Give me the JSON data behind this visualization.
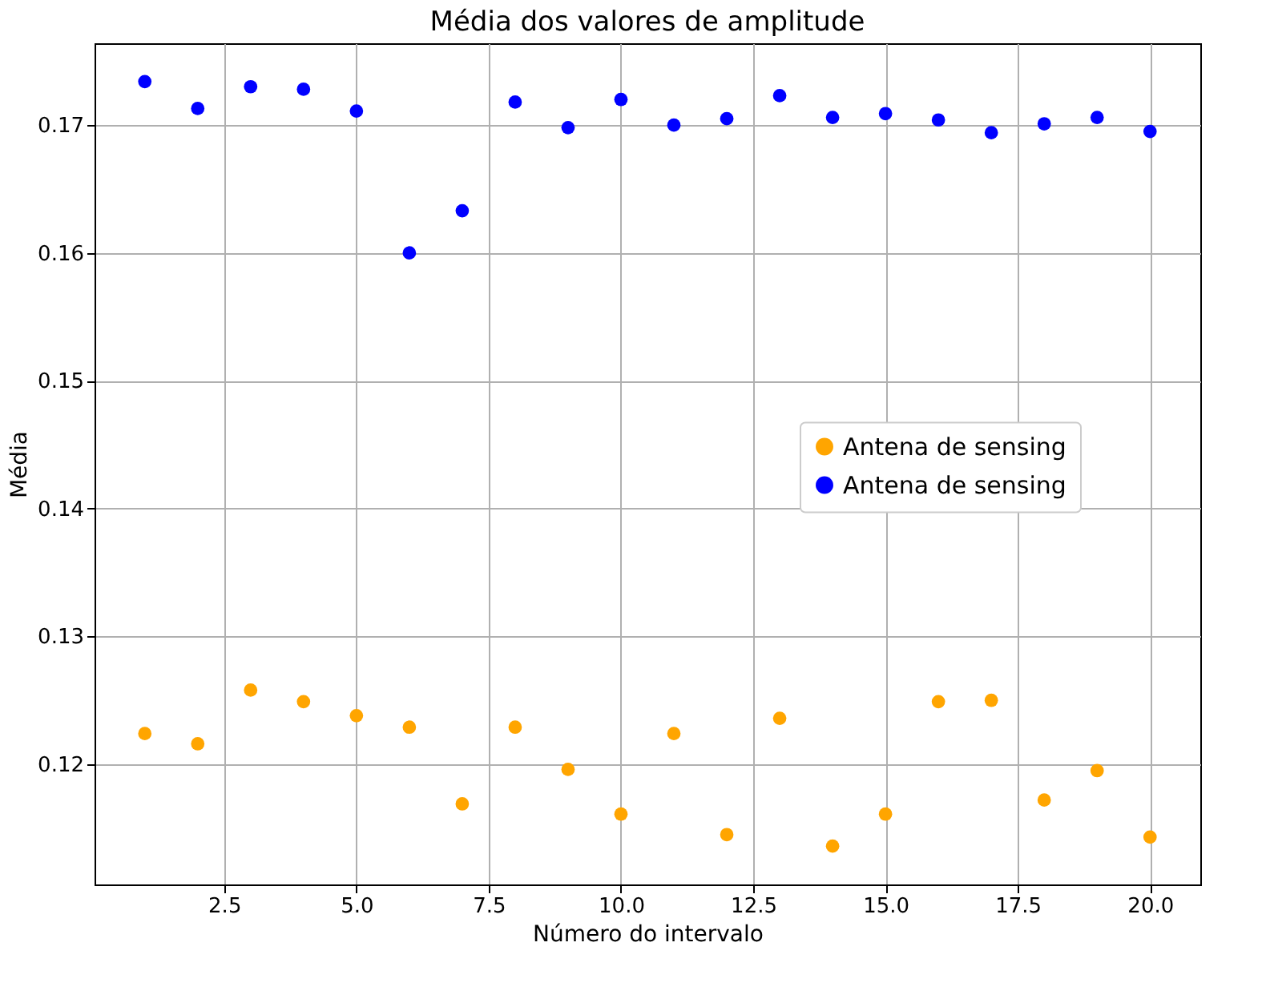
{
  "chart_data": {
    "type": "scatter",
    "title": "Média dos valores de amplitude",
    "xlabel": "Número do intervalo",
    "ylabel": "Média",
    "x": [
      1,
      2,
      3,
      4,
      5,
      6,
      7,
      8,
      9,
      10,
      11,
      12,
      13,
      14,
      15,
      16,
      17,
      18,
      19,
      20
    ],
    "series": [
      {
        "name": "Antena de sensing",
        "color": "#ffa500",
        "values": [
          0.1224,
          0.1216,
          0.1258,
          0.1249,
          0.1238,
          0.1229,
          0.1169,
          0.1229,
          0.1196,
          0.1161,
          0.1224,
          0.1145,
          0.1236,
          0.1136,
          0.1161,
          0.1249,
          0.125,
          0.1172,
          0.1195,
          0.1143
        ]
      },
      {
        "name": "Antena de sensing",
        "color": "#0000ff",
        "values": [
          0.1734,
          0.1713,
          0.173,
          0.1728,
          0.1711,
          0.16,
          0.1633,
          0.1718,
          0.1698,
          0.172,
          0.17,
          0.1705,
          0.1723,
          0.1706,
          0.1709,
          0.1704,
          0.1694,
          0.1701,
          0.1706,
          0.1695
        ]
      }
    ],
    "xlim": [
      0.05,
      20.95
    ],
    "xticks": [
      2.5,
      {
        "value": 5,
        "label": "5.0"
      },
      7.5,
      {
        "value": 10,
        "label": "10.0"
      },
      12.5,
      {
        "value": 15,
        "label": "15.0"
      },
      17.5,
      {
        "value": 20,
        "label": "20.0"
      }
    ],
    "ylim": [
      0.1106,
      0.1764
    ],
    "yticks": [
      0.12,
      0.13,
      0.14,
      0.15,
      0.16,
      0.17
    ],
    "grid": true,
    "legend": "right",
    "marker": "circle"
  }
}
